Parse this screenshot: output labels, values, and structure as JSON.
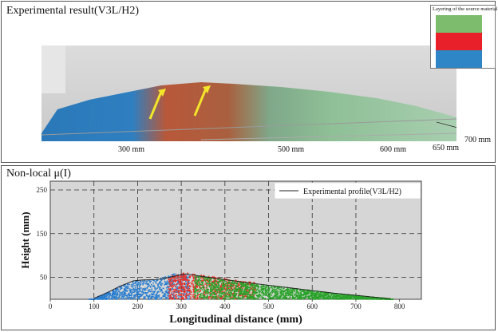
{
  "top_panel": {
    "title": "Experimental result(V3L/H2)",
    "legend_title": "Layering  of the source material",
    "layers": [
      {
        "color": "#7dbb6d"
      },
      {
        "color": "#e8202a"
      },
      {
        "color": "#2f86c6"
      }
    ],
    "distance_labels": [
      "300 mm",
      "500 mm",
      "600 mm",
      "650 mm",
      "700 mm"
    ]
  },
  "bottom_panel": {
    "title": "Non-local μ(I)",
    "legend_label": "Experimental  profile(V3L/H2)"
  },
  "chart_data": {
    "type": "scatter",
    "xlabel": "Longitudinal distance (mm)",
    "ylabel": "Height (mm)",
    "xlim": [
      0,
      850
    ],
    "ylim": [
      0,
      270
    ],
    "x_ticks": [
      0,
      100,
      200,
      300,
      400,
      500,
      600,
      700,
      800
    ],
    "y_ticks": [
      50,
      150,
      250
    ],
    "grid": true,
    "grid_x": [
      100,
      200,
      300,
      400,
      500,
      600,
      700
    ],
    "grid_y": [
      50,
      150,
      250
    ],
    "legend_position": "top-right",
    "line": {
      "name": "Experimental  profile(V3L/H2)",
      "x": [
        100,
        130,
        160,
        190,
        210,
        240,
        260,
        280,
        310,
        350,
        400,
        450,
        500,
        550,
        600,
        650,
        700,
        750,
        780
      ],
      "y": [
        2,
        15,
        30,
        42,
        44,
        45,
        47,
        52,
        58,
        52,
        45,
        38,
        32,
        26,
        20,
        14,
        9,
        4,
        1
      ]
    },
    "particle_layers": [
      {
        "color": "#2b7fd0",
        "x_start": 90,
        "x_end": 320
      },
      {
        "color": "#e53228",
        "x_start": 270,
        "x_end": 470
      },
      {
        "color": "#2aa32a",
        "x_start": 330,
        "x_end": 785
      }
    ]
  }
}
